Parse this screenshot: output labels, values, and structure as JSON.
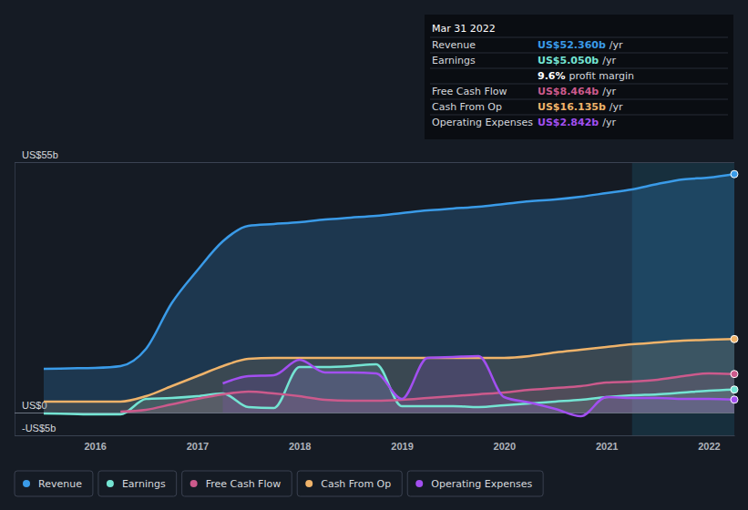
{
  "chart_data": {
    "type": "area",
    "x": [
      2015.5,
      2015.75,
      2016,
      2016.25,
      2016.5,
      2016.75,
      2017,
      2017.25,
      2017.5,
      2017.75,
      2018,
      2018.25,
      2018.5,
      2018.75,
      2019,
      2019.25,
      2019.5,
      2019.75,
      2020,
      2020.25,
      2020.5,
      2020.75,
      2021,
      2021.25,
      2021.5,
      2021.75,
      2022,
      2022.25
    ],
    "xlim": [
      2015.5,
      2022.25
    ],
    "xticks": [
      2016,
      2017,
      2018,
      2019,
      2020,
      2021,
      2022
    ],
    "ylim": [
      -5,
      55
    ],
    "yticks": [
      {
        "value": -5,
        "label": "-US$5b"
      },
      {
        "value": 0,
        "label": "US$0"
      },
      {
        "value": 55,
        "label": "US$55b"
      }
    ],
    "grid": true,
    "legend": "bottom",
    "series": [
      {
        "name": "Revenue",
        "color": "#3a9be8",
        "values": [
          9.6,
          9.7,
          9.8,
          10.2,
          14,
          24,
          31.2,
          37.6,
          41,
          41.4,
          41.8,
          42.4,
          42.8,
          43.2,
          43.8,
          44.4,
          44.8,
          45.2,
          45.8,
          46.4,
          46.8,
          47.4,
          48.2,
          49,
          50.2,
          51.2,
          51.6,
          52.36
        ]
      },
      {
        "name": "Earnings",
        "color": "#74e4d3",
        "values": [
          -0.2,
          -0.3,
          -0.4,
          -0.4,
          3,
          3.2,
          3.6,
          4.2,
          1.2,
          1,
          10,
          10,
          10.2,
          10.6,
          1.4,
          1.4,
          1.4,
          1.2,
          1.6,
          2,
          2.4,
          2.8,
          3.4,
          3.8,
          4,
          4.4,
          4.8,
          5.05
        ]
      },
      {
        "name": "Free Cash Flow",
        "color": "#cc5a8c",
        "values": [
          null,
          null,
          null,
          0.2,
          0.6,
          1.8,
          3,
          4,
          4.6,
          4.2,
          3.6,
          2.8,
          2.6,
          2.6,
          2.8,
          3.2,
          3.6,
          4,
          4.4,
          5,
          5.4,
          5.8,
          6.6,
          6.8,
          7.2,
          8,
          8.6,
          8.464
        ]
      },
      {
        "name": "Cash From Op",
        "color": "#efb36a",
        "values": [
          2.4,
          2.4,
          2.4,
          2.4,
          3.6,
          5.8,
          8,
          10.2,
          11.8,
          12,
          12,
          12,
          12,
          12,
          12,
          12,
          12,
          12,
          12,
          12.4,
          13.2,
          13.8,
          14.4,
          15,
          15.4,
          15.8,
          16,
          16.135
        ]
      },
      {
        "name": "Operating Expenses",
        "color": "#a24ff0",
        "values": [
          null,
          null,
          null,
          null,
          null,
          null,
          null,
          6.4,
          8,
          8.2,
          11.6,
          8.8,
          8.8,
          8.6,
          3,
          12,
          12.2,
          12.4,
          3.4,
          2.2,
          0.8,
          -0.8,
          3.4,
          3.2,
          3.2,
          3,
          3,
          2.842
        ]
      }
    ],
    "tooltip": {
      "date": "Mar 31 2022",
      "rows": [
        {
          "label": "Revenue",
          "value": "US$52.360b",
          "suffix": "/yr"
        },
        {
          "label": "Earnings",
          "value": "US$5.050b",
          "suffix": "/yr"
        },
        {
          "label": null,
          "value": "9.6%",
          "suffix": "profit margin"
        },
        {
          "label": "Free Cash Flow",
          "value": "US$8.464b",
          "suffix": "/yr"
        },
        {
          "label": "Cash From Op",
          "value": "US$16.135b",
          "suffix": "/yr"
        },
        {
          "label": "Operating Expenses",
          "value": "US$2.842b",
          "suffix": "/yr"
        }
      ]
    }
  }
}
